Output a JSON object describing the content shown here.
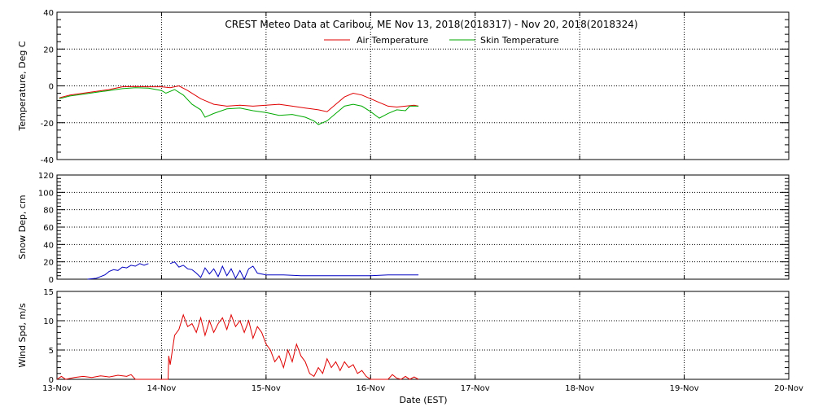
{
  "chart_data": {
    "type": "line",
    "title": "CREST Meteo Data at Caribou, ME   Nov 13, 2018(2018317) - Nov 20, 2018(2018324)",
    "xlabel": "Date (EST)",
    "x_ticks": [
      "13-Nov",
      "14-Nov",
      "15-Nov",
      "16-Nov",
      "17-Nov",
      "18-Nov",
      "19-Nov",
      "20-Nov"
    ],
    "xlim": [
      "2018-11-13",
      "2018-11-20"
    ],
    "grid": true,
    "panels": [
      {
        "ylabel": "Temperature, Deg C",
        "ylim": [
          -40,
          40
        ],
        "y_ticks": [
          -40,
          -20,
          0,
          20,
          40
        ],
        "legend": "top-center",
        "series": [
          {
            "name": "Air Temperature",
            "color": "#e00000",
            "points": [
              [
                "2018-11-13 00:30",
                -6.5
              ],
              [
                "2018-11-13 03:00",
                -5.0
              ],
              [
                "2018-11-13 06:00",
                -4.0
              ],
              [
                "2018-11-13 09:00",
                -3.0
              ],
              [
                "2018-11-13 12:00",
                -2.0
              ],
              [
                "2018-11-13 15:00",
                -0.5
              ],
              [
                "2018-11-13 18:00",
                -0.3
              ],
              [
                "2018-11-13 21:00",
                -0.5
              ],
              [
                "2018-11-14 00:00",
                -0.5
              ],
              [
                "2018-11-14 02:00",
                -1.0
              ],
              [
                "2018-11-14 04:00",
                0.0
              ],
              [
                "2018-11-14 06:00",
                -2.5
              ],
              [
                "2018-11-14 09:00",
                -7.0
              ],
              [
                "2018-11-14 12:00",
                -10.0
              ],
              [
                "2018-11-14 15:00",
                -11.0
              ],
              [
                "2018-11-14 18:00",
                -10.5
              ],
              [
                "2018-11-14 21:00",
                -11.0
              ],
              [
                "2018-11-15 00:00",
                -10.5
              ],
              [
                "2018-11-15 03:00",
                -10.0
              ],
              [
                "2018-11-15 06:00",
                -11.0
              ],
              [
                "2018-11-15 09:00",
                -12.0
              ],
              [
                "2018-11-15 12:00",
                -13.0
              ],
              [
                "2018-11-15 14:00",
                -14.0
              ],
              [
                "2018-11-15 16:00",
                -10.0
              ],
              [
                "2018-11-15 18:00",
                -6.0
              ],
              [
                "2018-11-15 20:00",
                -4.0
              ],
              [
                "2018-11-15 22:00",
                -5.0
              ],
              [
                "2018-11-16 00:00",
                -7.0
              ],
              [
                "2018-11-16 02:00",
                -9.0
              ],
              [
                "2018-11-16 04:00",
                -11.0
              ],
              [
                "2018-11-16 06:00",
                -11.5
              ],
              [
                "2018-11-16 08:00",
                -11.0
              ],
              [
                "2018-11-16 10:00",
                -10.5
              ],
              [
                "2018-11-16 11:00",
                -11.0
              ]
            ]
          },
          {
            "name": "Skin Temperature",
            "color": "#00aa00",
            "points": [
              [
                "2018-11-13 00:30",
                -7.0
              ],
              [
                "2018-11-13 03:00",
                -5.5
              ],
              [
                "2018-11-13 06:00",
                -4.5
              ],
              [
                "2018-11-13 09:00",
                -3.5
              ],
              [
                "2018-11-13 12:00",
                -2.5
              ],
              [
                "2018-11-13 15:00",
                -1.5
              ],
              [
                "2018-11-13 18:00",
                -1.0
              ],
              [
                "2018-11-13 21:00",
                -1.2
              ],
              [
                "2018-11-14 00:00",
                -2.5
              ],
              [
                "2018-11-14 01:00",
                -4.0
              ],
              [
                "2018-11-14 03:00",
                -2.0
              ],
              [
                "2018-11-14 05:00",
                -5.0
              ],
              [
                "2018-11-14 07:00",
                -10.0
              ],
              [
                "2018-11-14 09:00",
                -13.0
              ],
              [
                "2018-11-14 10:00",
                -17.0
              ],
              [
                "2018-11-14 12:00",
                -15.0
              ],
              [
                "2018-11-14 15:00",
                -12.5
              ],
              [
                "2018-11-14 18:00",
                -12.0
              ],
              [
                "2018-11-14 21:00",
                -13.5
              ],
              [
                "2018-11-15 00:00",
                -14.5
              ],
              [
                "2018-11-15 03:00",
                -16.0
              ],
              [
                "2018-11-15 06:00",
                -15.5
              ],
              [
                "2018-11-15 09:00",
                -17.0
              ],
              [
                "2018-11-15 11:00",
                -19.0
              ],
              [
                "2018-11-15 12:00",
                -21.0
              ],
              [
                "2018-11-15 14:00",
                -19.0
              ],
              [
                "2018-11-15 16:00",
                -15.0
              ],
              [
                "2018-11-15 18:00",
                -11.0
              ],
              [
                "2018-11-15 20:00",
                -10.0
              ],
              [
                "2018-11-15 22:00",
                -11.0
              ],
              [
                "2018-11-16 00:00",
                -14.0
              ],
              [
                "2018-11-16 02:00",
                -17.5
              ],
              [
                "2018-11-16 04:00",
                -15.0
              ],
              [
                "2018-11-16 06:00",
                -13.0
              ],
              [
                "2018-11-16 08:00",
                -13.5
              ],
              [
                "2018-11-16 09:00",
                -11.0
              ],
              [
                "2018-11-16 11:00",
                -11.0
              ]
            ]
          }
        ]
      },
      {
        "ylabel": "Snow Dep, cm",
        "ylim": [
          0,
          120
        ],
        "y_ticks": [
          0,
          20,
          40,
          60,
          80,
          100,
          120
        ],
        "series": [
          {
            "name": "Snow Depth",
            "color": "#0000c0",
            "segments": [
              [
                [
                  "2018-11-13 07:00",
                  0
                ],
                [
                  "2018-11-13 09:00",
                  1
                ],
                [
                  "2018-11-13 10:00",
                  3
                ],
                [
                  "2018-11-13 11:00",
                  5
                ],
                [
                  "2018-11-13 12:00",
                  9
                ],
                [
                  "2018-11-13 13:00",
                  11
                ],
                [
                  "2018-11-13 14:00",
                  10
                ],
                [
                  "2018-11-13 15:00",
                  14
                ],
                [
                  "2018-11-13 16:00",
                  13
                ],
                [
                  "2018-11-13 17:00",
                  16
                ],
                [
                  "2018-11-13 18:00",
                  15
                ],
                [
                  "2018-11-13 19:00",
                  18
                ],
                [
                  "2018-11-13 20:00",
                  16
                ],
                [
                  "2018-11-13 21:00",
                  18
                ]
              ],
              [
                [
                  "2018-11-14 02:00",
                  18
                ],
                [
                  "2018-11-14 03:00",
                  20
                ],
                [
                  "2018-11-14 04:00",
                  14
                ],
                [
                  "2018-11-14 05:00",
                  16
                ],
                [
                  "2018-11-14 06:00",
                  12
                ],
                [
                  "2018-11-14 07:00",
                  11
                ],
                [
                  "2018-11-14 08:00",
                  7
                ],
                [
                  "2018-11-14 09:00",
                  2
                ],
                [
                  "2018-11-14 10:00",
                  13
                ],
                [
                  "2018-11-14 11:00",
                  6
                ],
                [
                  "2018-11-14 12:00",
                  12
                ],
                [
                  "2018-11-14 13:00",
                  3
                ],
                [
                  "2018-11-14 14:00",
                  15
                ],
                [
                  "2018-11-14 15:00",
                  4
                ],
                [
                  "2018-11-14 16:00",
                  12
                ],
                [
                  "2018-11-14 17:00",
                  1
                ],
                [
                  "2018-11-14 18:00",
                  10
                ],
                [
                  "2018-11-14 19:00",
                  0
                ],
                [
                  "2018-11-14 20:00",
                  12
                ],
                [
                  "2018-11-14 21:00",
                  15
                ],
                [
                  "2018-11-14 22:00",
                  7
                ],
                [
                  "2018-11-15 00:00",
                  5
                ],
                [
                  "2018-11-15 04:00",
                  5
                ],
                [
                  "2018-11-15 08:00",
                  4
                ],
                [
                  "2018-11-15 12:00",
                  4
                ],
                [
                  "2018-11-15 16:00",
                  4
                ],
                [
                  "2018-11-15 20:00",
                  4
                ],
                [
                  "2018-11-16 00:00",
                  4
                ],
                [
                  "2018-11-16 04:00",
                  5
                ],
                [
                  "2018-11-16 08:00",
                  5
                ],
                [
                  "2018-11-16 11:00",
                  5
                ]
              ]
            ]
          }
        ]
      },
      {
        "ylabel": "Wind Spd, m/s",
        "ylim": [
          0,
          15
        ],
        "y_ticks": [
          0,
          5,
          10,
          15
        ],
        "series": [
          {
            "name": "Wind Speed",
            "color": "#e00000",
            "points": [
              [
                "2018-11-13 00:00",
                0
              ],
              [
                "2018-11-13 01:00",
                0.5
              ],
              [
                "2018-11-13 02:00",
                0
              ],
              [
                "2018-11-13 04:00",
                0.3
              ],
              [
                "2018-11-13 06:00",
                0.5
              ],
              [
                "2018-11-13 08:00",
                0.3
              ],
              [
                "2018-11-13 10:00",
                0.6
              ],
              [
                "2018-11-13 12:00",
                0.4
              ],
              [
                "2018-11-13 14:00",
                0.7
              ],
              [
                "2018-11-13 16:00",
                0.5
              ],
              [
                "2018-11-13 17:00",
                0.8
              ],
              [
                "2018-11-13 18:00",
                0
              ],
              [
                "2018-11-13 21:00",
                0
              ],
              [
                "2018-11-14 00:00",
                0
              ],
              [
                "2018-11-14 01:30",
                0
              ],
              [
                "2018-11-14 01:40",
                4.0
              ],
              [
                "2018-11-14 02:00",
                2.5
              ],
              [
                "2018-11-14 03:00",
                7.5
              ],
              [
                "2018-11-14 04:00",
                8.5
              ],
              [
                "2018-11-14 05:00",
                11.0
              ],
              [
                "2018-11-14 06:00",
                9.0
              ],
              [
                "2018-11-14 07:00",
                9.5
              ],
              [
                "2018-11-14 08:00",
                8.0
              ],
              [
                "2018-11-14 09:00",
                10.5
              ],
              [
                "2018-11-14 10:00",
                7.5
              ],
              [
                "2018-11-14 11:00",
                10.0
              ],
              [
                "2018-11-14 12:00",
                8.0
              ],
              [
                "2018-11-14 13:00",
                9.5
              ],
              [
                "2018-11-14 14:00",
                10.5
              ],
              [
                "2018-11-14 15:00",
                8.5
              ],
              [
                "2018-11-14 16:00",
                11.0
              ],
              [
                "2018-11-14 17:00",
                9.0
              ],
              [
                "2018-11-14 18:00",
                10.0
              ],
              [
                "2018-11-14 19:00",
                8.0
              ],
              [
                "2018-11-14 20:00",
                10.0
              ],
              [
                "2018-11-14 21:00",
                7.0
              ],
              [
                "2018-11-14 22:00",
                9.0
              ],
              [
                "2018-11-14 23:00",
                8.0
              ],
              [
                "2018-11-15 00:00",
                6.0
              ],
              [
                "2018-11-15 01:00",
                5.0
              ],
              [
                "2018-11-15 02:00",
                3.0
              ],
              [
                "2018-11-15 03:00",
                4.0
              ],
              [
                "2018-11-15 04:00",
                2.0
              ],
              [
                "2018-11-15 05:00",
                5.0
              ],
              [
                "2018-11-15 06:00",
                3.0
              ],
              [
                "2018-11-15 07:00",
                6.0
              ],
              [
                "2018-11-15 08:00",
                4.0
              ],
              [
                "2018-11-15 09:00",
                3.0
              ],
              [
                "2018-11-15 10:00",
                1.0
              ],
              [
                "2018-11-15 11:00",
                0.5
              ],
              [
                "2018-11-15 12:00",
                2.0
              ],
              [
                "2018-11-15 13:00",
                1.0
              ],
              [
                "2018-11-15 14:00",
                3.5
              ],
              [
                "2018-11-15 15:00",
                2.0
              ],
              [
                "2018-11-15 16:00",
                3.0
              ],
              [
                "2018-11-15 17:00",
                1.5
              ],
              [
                "2018-11-15 18:00",
                3.0
              ],
              [
                "2018-11-15 19:00",
                2.0
              ],
              [
                "2018-11-15 20:00",
                2.5
              ],
              [
                "2018-11-15 21:00",
                1.0
              ],
              [
                "2018-11-15 22:00",
                1.5
              ],
              [
                "2018-11-15 23:00",
                0.5
              ],
              [
                "2018-11-16 00:00",
                0
              ],
              [
                "2018-11-16 02:00",
                0
              ],
              [
                "2018-11-16 04:00",
                0
              ],
              [
                "2018-11-16 05:00",
                0.8
              ],
              [
                "2018-11-16 06:00",
                0.2
              ],
              [
                "2018-11-16 07:00",
                0
              ],
              [
                "2018-11-16 08:00",
                0.5
              ],
              [
                "2018-11-16 09:00",
                0
              ],
              [
                "2018-11-16 10:00",
                0.4
              ],
              [
                "2018-11-16 11:00",
                0
              ]
            ]
          }
        ]
      }
    ]
  }
}
